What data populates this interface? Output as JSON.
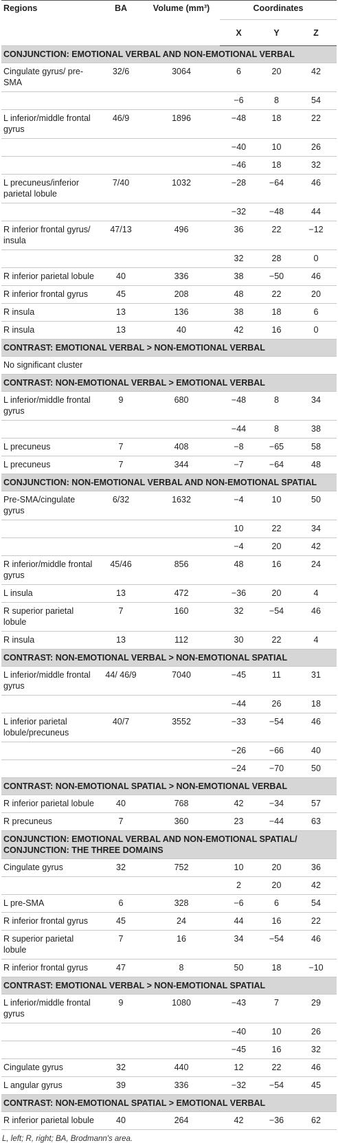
{
  "header": {
    "regions": "Regions",
    "ba": "BA",
    "volume": "Volume (mm³)",
    "coordinates": "Coordinates",
    "x": "X",
    "y": "Y",
    "z": "Z"
  },
  "sections": [
    {
      "title": "CONJUNCTION: EMOTIONAL VERBAL AND NON-EMOTIONAL VERBAL",
      "rows": [
        [
          "Cingulate gyrus/ pre-SMA",
          "32/6",
          "3064",
          "6",
          "20",
          "42"
        ],
        [
          null,
          null,
          null,
          "−6",
          "8",
          "54"
        ],
        [
          "L inferior/middle frontal gyrus",
          "46/9",
          "1896",
          "−48",
          "18",
          "22"
        ],
        [
          null,
          null,
          null,
          "−40",
          "10",
          "26"
        ],
        [
          null,
          null,
          null,
          "−46",
          "18",
          "32"
        ],
        [
          "L precuneus/inferior parietal lobule",
          "7/40",
          "1032",
          "−28",
          "−64",
          "46"
        ],
        [
          null,
          null,
          null,
          "−32",
          "−48",
          "44"
        ],
        [
          "R inferior frontal gyrus/ insula",
          "47/13",
          "496",
          "36",
          "22",
          "−12"
        ],
        [
          null,
          null,
          null,
          "32",
          "28",
          "0"
        ],
        [
          "R inferior parietal lobule",
          "40",
          "336",
          "38",
          "−50",
          "46"
        ],
        [
          "R inferior frontal gyrus",
          "45",
          "208",
          "48",
          "22",
          "20"
        ],
        [
          "R insula",
          "13",
          "136",
          "38",
          "18",
          "6"
        ],
        [
          "R insula",
          "13",
          "40",
          "42",
          "16",
          "0"
        ]
      ]
    },
    {
      "title": "CONTRAST: EMOTIONAL VERBAL > NON-EMOTIONAL VERBAL",
      "note": "No significant cluster"
    },
    {
      "title": "CONTRAST: NON-EMOTIONAL VERBAL > EMOTIONAL VERBAL",
      "rows": [
        [
          "L inferior/middle frontal gyrus",
          "9",
          "680",
          "−48",
          "8",
          "34"
        ],
        [
          null,
          null,
          null,
          "−44",
          "8",
          "38"
        ],
        [
          "L precuneus",
          "7",
          "408",
          "−8",
          "−65",
          "58"
        ],
        [
          "L precuneus",
          "7",
          "344",
          "−7",
          "−64",
          "48"
        ]
      ]
    },
    {
      "title": "CONJUNCTION: NON-EMOTIONAL VERBAL AND NON-EMOTIONAL SPATIAL",
      "rows": [
        [
          "Pre-SMA/cingulate gyrus",
          "6/32",
          "1632",
          "−4",
          "10",
          "50"
        ],
        [
          null,
          null,
          null,
          "10",
          "22",
          "34"
        ],
        [
          null,
          null,
          null,
          "−4",
          "20",
          "42"
        ],
        [
          "R inferior/middle frontal gyrus",
          "45/46",
          "856",
          "48",
          "16",
          "24"
        ],
        [
          "L insula",
          "13",
          "472",
          "−36",
          "20",
          "4"
        ],
        [
          "R superior parietal lobule",
          "7",
          "160",
          "32",
          "−54",
          "46"
        ],
        [
          "R insula",
          "13",
          "112",
          "30",
          "22",
          "4"
        ]
      ]
    },
    {
      "title": "CONTRAST: NON-EMOTIONAL VERBAL > NON-EMOTIONAL SPATIAL",
      "rows": [
        [
          "L inferior/middle frontal gyrus",
          "44/ 46/9",
          "7040",
          "−45",
          "11",
          "31"
        ],
        [
          null,
          null,
          null,
          "−44",
          "26",
          "18"
        ],
        [
          "L inferior parietal lobule/precuneus",
          "40/7",
          "3552",
          "−33",
          "−54",
          "46"
        ],
        [
          null,
          null,
          null,
          "−26",
          "−66",
          "40"
        ],
        [
          null,
          null,
          null,
          "−24",
          "−70",
          "50"
        ]
      ]
    },
    {
      "title": "CONTRAST: NON-EMOTIONAL SPATIAL > NON-EMOTIONAL VERBAL",
      "rows": [
        [
          "R inferior parietal lobule",
          "40",
          "768",
          "42",
          "−34",
          "57"
        ],
        [
          "R precuneus",
          "7",
          "360",
          "23",
          "−44",
          "63"
        ]
      ]
    },
    {
      "title": "CONJUNCTION: EMOTIONAL VERBAL AND NON-EMOTIONAL SPATIAL/ CONJUNCTION: THE THREE DOMAINS",
      "rows": [
        [
          "Cingulate gyrus",
          "32",
          "752",
          "10",
          "20",
          "36"
        ],
        [
          null,
          null,
          null,
          "2",
          "20",
          "42"
        ],
        [
          "L pre-SMA",
          "6",
          "328",
          "−6",
          "6",
          "54"
        ],
        [
          "R inferior frontal gyrus",
          "45",
          "24",
          "44",
          "16",
          "22"
        ],
        [
          "R superior parietal lobule",
          "7",
          "16",
          "34",
          "−54",
          "46"
        ],
        [
          "R inferior frontal gyrus",
          "47",
          "8",
          "50",
          "18",
          "−10"
        ]
      ]
    },
    {
      "title": "CONTRAST: EMOTIONAL VERBAL > NON-EMOTIONAL SPATIAL",
      "rows": [
        [
          "L inferior/middle frontal gyrus",
          "9",
          "1080",
          "−43",
          "7",
          "29"
        ],
        [
          null,
          null,
          null,
          "−40",
          "10",
          "26"
        ],
        [
          null,
          null,
          null,
          "−45",
          "16",
          "32"
        ],
        [
          "Cingulate gyrus",
          "32",
          "440",
          "12",
          "22",
          "46"
        ],
        [
          "L angular gyrus",
          "39",
          "336",
          "−32",
          "−54",
          "45"
        ]
      ]
    },
    {
      "title": "CONTRAST: NON-EMOTIONAL SPATIAL > EMOTIONAL VERBAL",
      "rows": [
        [
          "R inferior parietal lobule",
          "40",
          "264",
          "42",
          "−36",
          "62"
        ]
      ]
    }
  ],
  "footnote": "L, left; R, right; BA, Brodmann's area."
}
